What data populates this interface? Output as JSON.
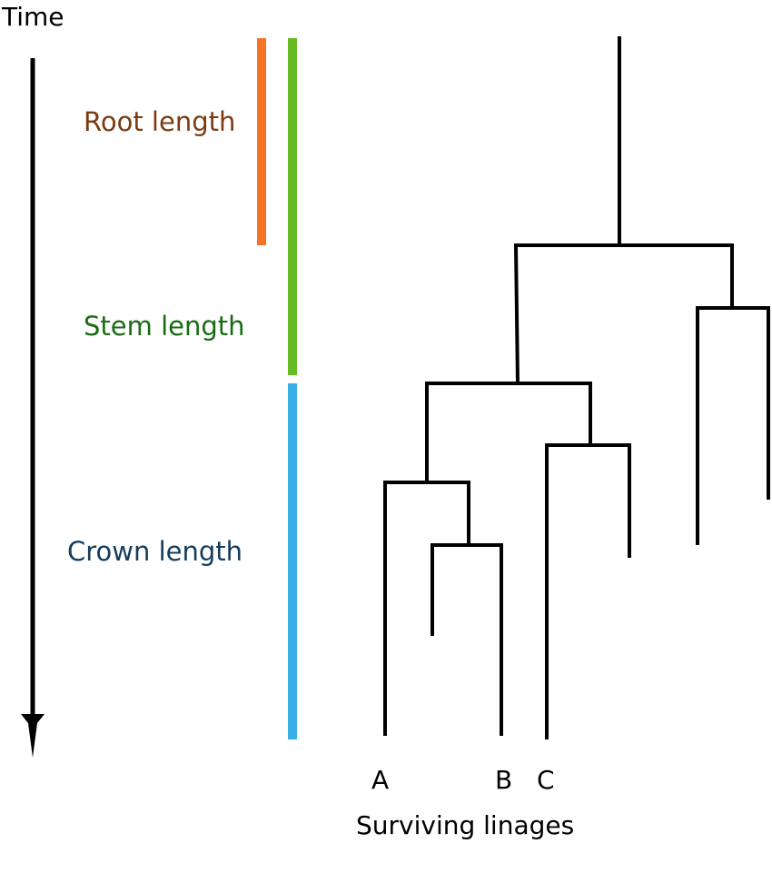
{
  "axis": {
    "label": "Time",
    "direction": "down"
  },
  "bars": [
    {
      "label": "Root length",
      "color": "#f47324",
      "text_color": "#7a3c10"
    },
    {
      "label": "Stem length",
      "color": "#66bb22",
      "text_color": "#1a6b12"
    },
    {
      "label": "Crown length",
      "color": "#3aaee6",
      "text_color": "#143c5c"
    }
  ],
  "tree": {
    "line_color": "#000000",
    "tips": {
      "A": "A",
      "B": "B",
      "C": "C"
    },
    "caption": "Surviving linages"
  }
}
